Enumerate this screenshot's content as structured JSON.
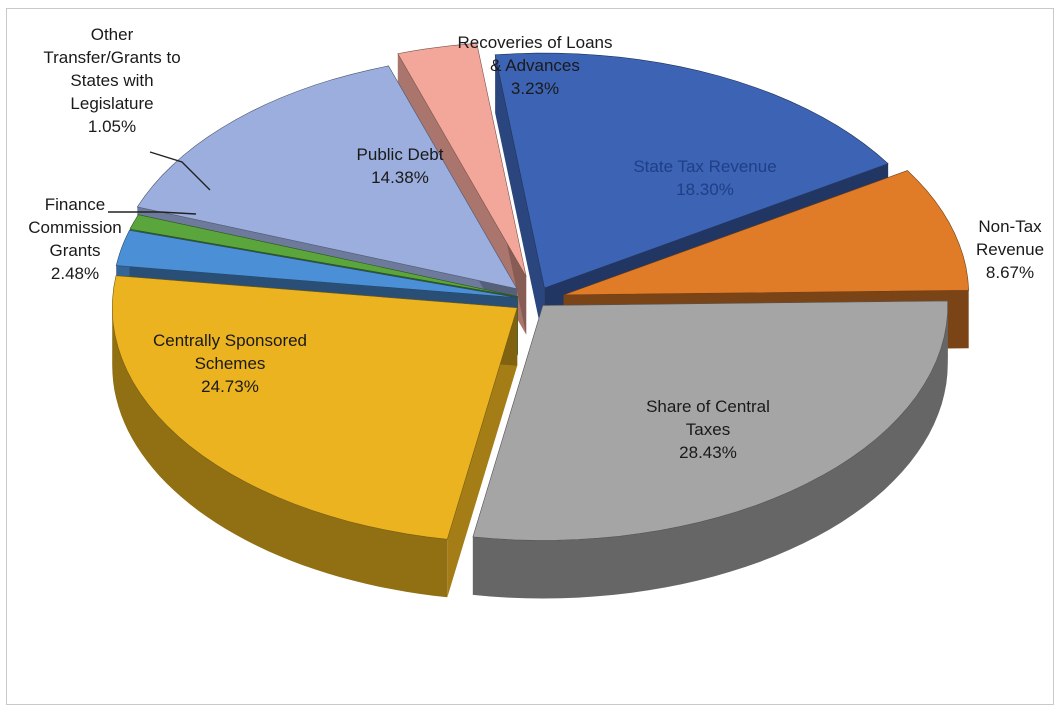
{
  "chart_data": {
    "type": "pie",
    "style": "3d-exploded",
    "slices": [
      {
        "label": "State Tax Revenue",
        "display": "State Tax Revenue",
        "value": 18.3,
        "value_label": "18.30%",
        "color": "#3d63b4"
      },
      {
        "label": "Non-Tax Revenue",
        "display": "Non-Tax Revenue",
        "value": 8.67,
        "value_label": "8.67%",
        "color": "#e07b28"
      },
      {
        "label": "Share of Central Taxes",
        "display": "Share of Central Taxes",
        "value": 28.43,
        "value_label": "28.43%",
        "color": "#a5a5a5"
      },
      {
        "label": "Centrally Sponsored Schemes",
        "display": "Centrally Sponsored Schemes",
        "value": 24.73,
        "value_label": "24.73%",
        "color": "#eab31f"
      },
      {
        "label": "Finance Commission Grants",
        "display": "Finance Commission Grants",
        "value": 2.48,
        "value_label": "2.48%",
        "color": "#4b8fd6"
      },
      {
        "label": "Other Transfer/Grants to States with Legislature",
        "display": "Other Transfer/Grants to States with Legislature",
        "value": 1.05,
        "value_label": "1.05%",
        "color": "#5aa63c"
      },
      {
        "label": "Public Debt",
        "display": "Public Debt",
        "value": 14.38,
        "value_label": "14.38%",
        "color": "#9caedd"
      },
      {
        "label": "Recoveries of Loans & Advances",
        "display": "Recoveries of Loans & Advances",
        "value": 3.23,
        "value_label": "3.23%",
        "color": "#f3a79a"
      }
    ]
  }
}
